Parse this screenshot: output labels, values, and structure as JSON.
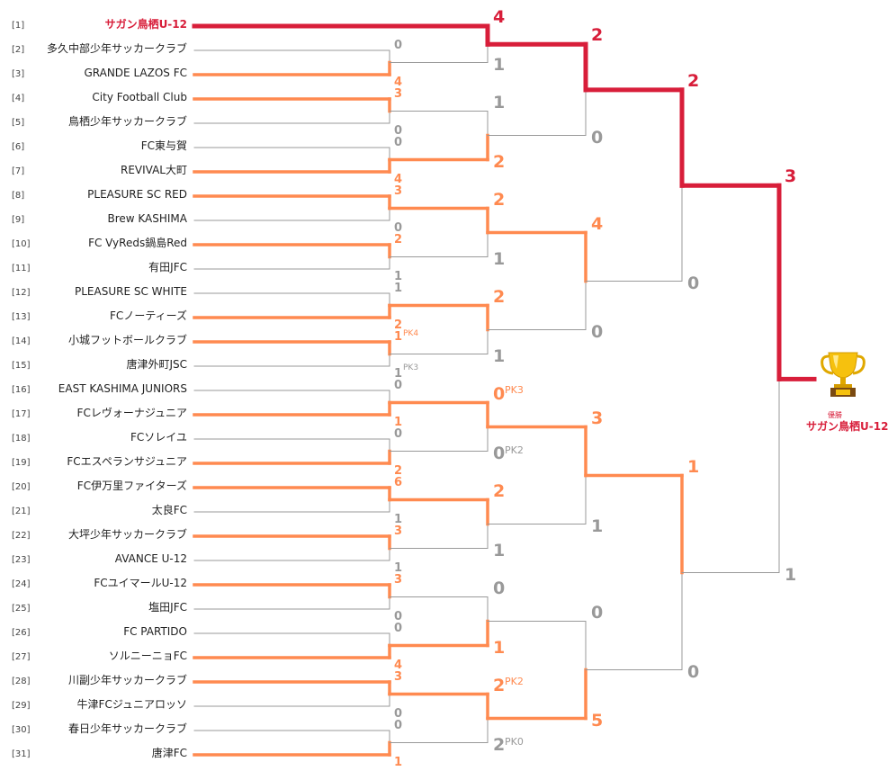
{
  "colors": {
    "loser_line": "#999999",
    "winner_line": "#ff8a50",
    "champion_line": "#d81e3a"
  },
  "teams": [
    {
      "seed": "[1]",
      "name": "サガン鳥栖U-12"
    },
    {
      "seed": "[2]",
      "name": "多久中部少年サッカークラブ"
    },
    {
      "seed": "[3]",
      "name": "GRANDE LAZOS FC"
    },
    {
      "seed": "[4]",
      "name": "City Football Club"
    },
    {
      "seed": "[5]",
      "name": "鳥栖少年サッカークラブ"
    },
    {
      "seed": "[6]",
      "name": "FC東与賀"
    },
    {
      "seed": "[7]",
      "name": "REVIVAL大町"
    },
    {
      "seed": "[8]",
      "name": "PLEASURE SC RED"
    },
    {
      "seed": "[9]",
      "name": "Brew KASHIMA"
    },
    {
      "seed": "[10]",
      "name": "FC VyReds鍋島Red"
    },
    {
      "seed": "[11]",
      "name": "有田JFC"
    },
    {
      "seed": "[12]",
      "name": "PLEASURE SC WHITE"
    },
    {
      "seed": "[13]",
      "name": "FCノーティーズ"
    },
    {
      "seed": "[14]",
      "name": "小城フットボールクラブ"
    },
    {
      "seed": "[15]",
      "name": "唐津外町JSC"
    },
    {
      "seed": "[16]",
      "name": "EAST KASHIMA JUNIORS"
    },
    {
      "seed": "[17]",
      "name": "FCレヴォーナジュニア"
    },
    {
      "seed": "[18]",
      "name": "FCソレイユ"
    },
    {
      "seed": "[19]",
      "name": "FCエスペランサジュニア"
    },
    {
      "seed": "[20]",
      "name": "FC伊万里ファイターズ"
    },
    {
      "seed": "[21]",
      "name": "太良FC"
    },
    {
      "seed": "[22]",
      "name": "大坪少年サッカークラブ"
    },
    {
      "seed": "[23]",
      "name": "AVANCE U-12"
    },
    {
      "seed": "[24]",
      "name": "FCユイマールU-12"
    },
    {
      "seed": "[25]",
      "name": "塩田JFC"
    },
    {
      "seed": "[26]",
      "name": "FC PARTIDO"
    },
    {
      "seed": "[27]",
      "name": "ソルニーニョFC"
    },
    {
      "seed": "[28]",
      "name": "川副少年サッカークラブ"
    },
    {
      "seed": "[29]",
      "name": "牛津FCジュニアロッソ"
    },
    {
      "seed": "[30]",
      "name": "春日少年サッカークラブ"
    },
    {
      "seed": "[31]",
      "name": "唐津FC"
    }
  ],
  "round1": [
    {
      "top_team": "[2]",
      "bottom_team": "[3]",
      "top_score": "0",
      "bottom_score": "4",
      "winner": "bottom"
    },
    {
      "top_team": "[4]",
      "bottom_team": "[5]",
      "top_score": "3",
      "bottom_score": "0",
      "winner": "top"
    },
    {
      "top_team": "[6]",
      "bottom_team": "[7]",
      "top_score": "0",
      "bottom_score": "4",
      "winner": "bottom"
    },
    {
      "top_team": "[8]",
      "bottom_team": "[9]",
      "top_score": "3",
      "bottom_score": "0",
      "winner": "top"
    },
    {
      "top_team": "[10]",
      "bottom_team": "[11]",
      "top_score": "2",
      "bottom_score": "1",
      "winner": "top"
    },
    {
      "top_team": "[12]",
      "bottom_team": "[13]",
      "top_score": "1",
      "bottom_score": "2",
      "winner": "bottom"
    },
    {
      "top_team": "[14]",
      "bottom_team": "[15]",
      "top_score": "1",
      "bottom_score": "1",
      "top_pk": "PK4",
      "bottom_pk": "PK3",
      "winner": "top"
    },
    {
      "top_team": "[16]",
      "bottom_team": "[17]",
      "top_score": "0",
      "bottom_score": "1",
      "winner": "bottom"
    },
    {
      "top_team": "[18]",
      "bottom_team": "[19]",
      "top_score": "0",
      "bottom_score": "2",
      "winner": "bottom"
    },
    {
      "top_team": "[20]",
      "bottom_team": "[21]",
      "top_score": "6",
      "bottom_score": "1",
      "winner": "top"
    },
    {
      "top_team": "[22]",
      "bottom_team": "[23]",
      "top_score": "3",
      "bottom_score": "1",
      "winner": "top"
    },
    {
      "top_team": "[24]",
      "bottom_team": "[25]",
      "top_score": "3",
      "bottom_score": "0",
      "winner": "top"
    },
    {
      "top_team": "[26]",
      "bottom_team": "[27]",
      "top_score": "0",
      "bottom_score": "4",
      "winner": "bottom"
    },
    {
      "top_team": "[28]",
      "bottom_team": "[29]",
      "top_score": "3",
      "bottom_score": "0",
      "winner": "top"
    },
    {
      "top_team": "[30]",
      "bottom_team": "[31]",
      "top_score": "0",
      "bottom_score": "1",
      "winner": "bottom"
    }
  ],
  "round2": [
    {
      "top_score": "4",
      "bottom_score": "1",
      "winner": "top"
    },
    {
      "top_score": "1",
      "bottom_score": "2",
      "winner": "bottom"
    },
    {
      "top_score": "2",
      "bottom_score": "1",
      "winner": "top"
    },
    {
      "top_score": "2",
      "bottom_score": "1",
      "winner": "top"
    },
    {
      "top_score": "0",
      "bottom_score": "0",
      "top_pk": "PK3",
      "bottom_pk": "PK2",
      "winner": "top"
    },
    {
      "top_score": "2",
      "bottom_score": "1",
      "winner": "top"
    },
    {
      "top_score": "0",
      "bottom_score": "1",
      "winner": "bottom"
    },
    {
      "top_score": "2",
      "bottom_score": "2",
      "top_pk": "PK2",
      "bottom_pk": "PK0",
      "winner": "top"
    }
  ],
  "round3": [
    {
      "top_score": "2",
      "bottom_score": "0",
      "winner": "top"
    },
    {
      "top_score": "4",
      "bottom_score": "0",
      "winner": "top"
    },
    {
      "top_score": "3",
      "bottom_score": "1",
      "winner": "top"
    },
    {
      "top_score": "0",
      "bottom_score": "5",
      "winner": "bottom"
    }
  ],
  "round4": [
    {
      "top_score": "2",
      "bottom_score": "0",
      "winner": "top"
    },
    {
      "top_score": "1",
      "bottom_score": "0",
      "winner": "top"
    }
  ],
  "final": {
    "top_score": "3",
    "bottom_score": "1",
    "winner": "top"
  },
  "champion": {
    "caption": "優勝",
    "name": "サガン鳥栖U-12",
    "icon": "trophy-icon"
  }
}
